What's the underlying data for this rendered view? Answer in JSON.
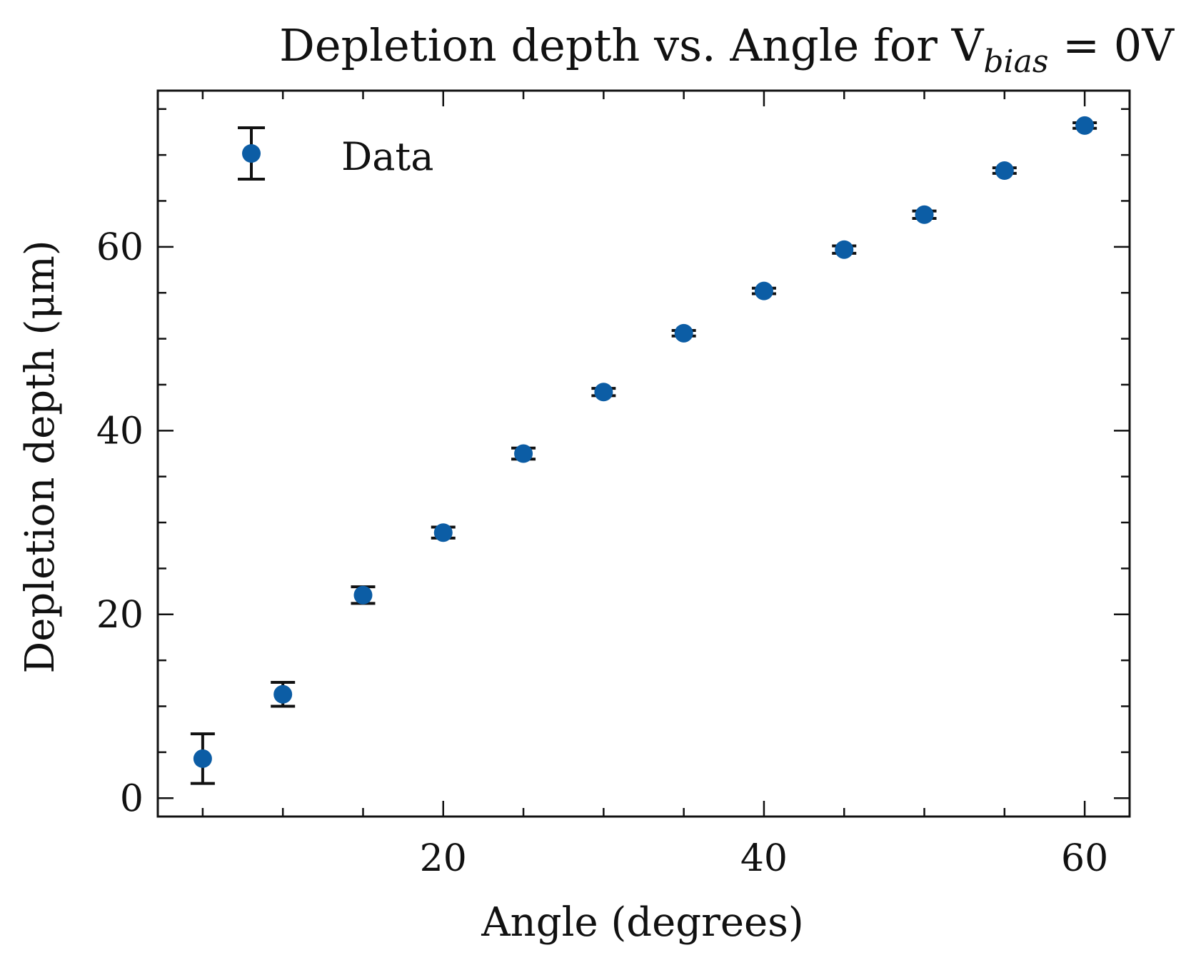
{
  "chart_data": {
    "type": "scatter",
    "title": "Depletion depth vs. Angle for V",
    "title_subscript": "bias",
    "title_suffix": " = 0V",
    "xlabel": "Angle (degrees)",
    "ylabel": "Depletion depth (μm)",
    "xlim": [
      2.2,
      62.8
    ],
    "ylim": [
      -2,
      77
    ],
    "xticks": [
      20,
      40,
      60
    ],
    "yticks": [
      0,
      20,
      40,
      60
    ],
    "xminor_step": 5,
    "yminor_step": 5,
    "grid": false,
    "legend": {
      "position": "top-left"
    },
    "marker_color": "#0c5da5",
    "errorbar_color": "#111111",
    "series": [
      {
        "name": "Data",
        "x": [
          5,
          10,
          15,
          20,
          25,
          30,
          35,
          40,
          45,
          50,
          55,
          60
        ],
        "y": [
          4.3,
          11.3,
          22.1,
          28.9,
          37.5,
          44.2,
          50.6,
          55.2,
          59.7,
          63.5,
          68.3,
          73.2
        ],
        "yerr": [
          2.7,
          1.3,
          0.9,
          0.6,
          0.6,
          0.4,
          0.3,
          0.3,
          0.4,
          0.4,
          0.3,
          0.3
        ]
      }
    ]
  }
}
